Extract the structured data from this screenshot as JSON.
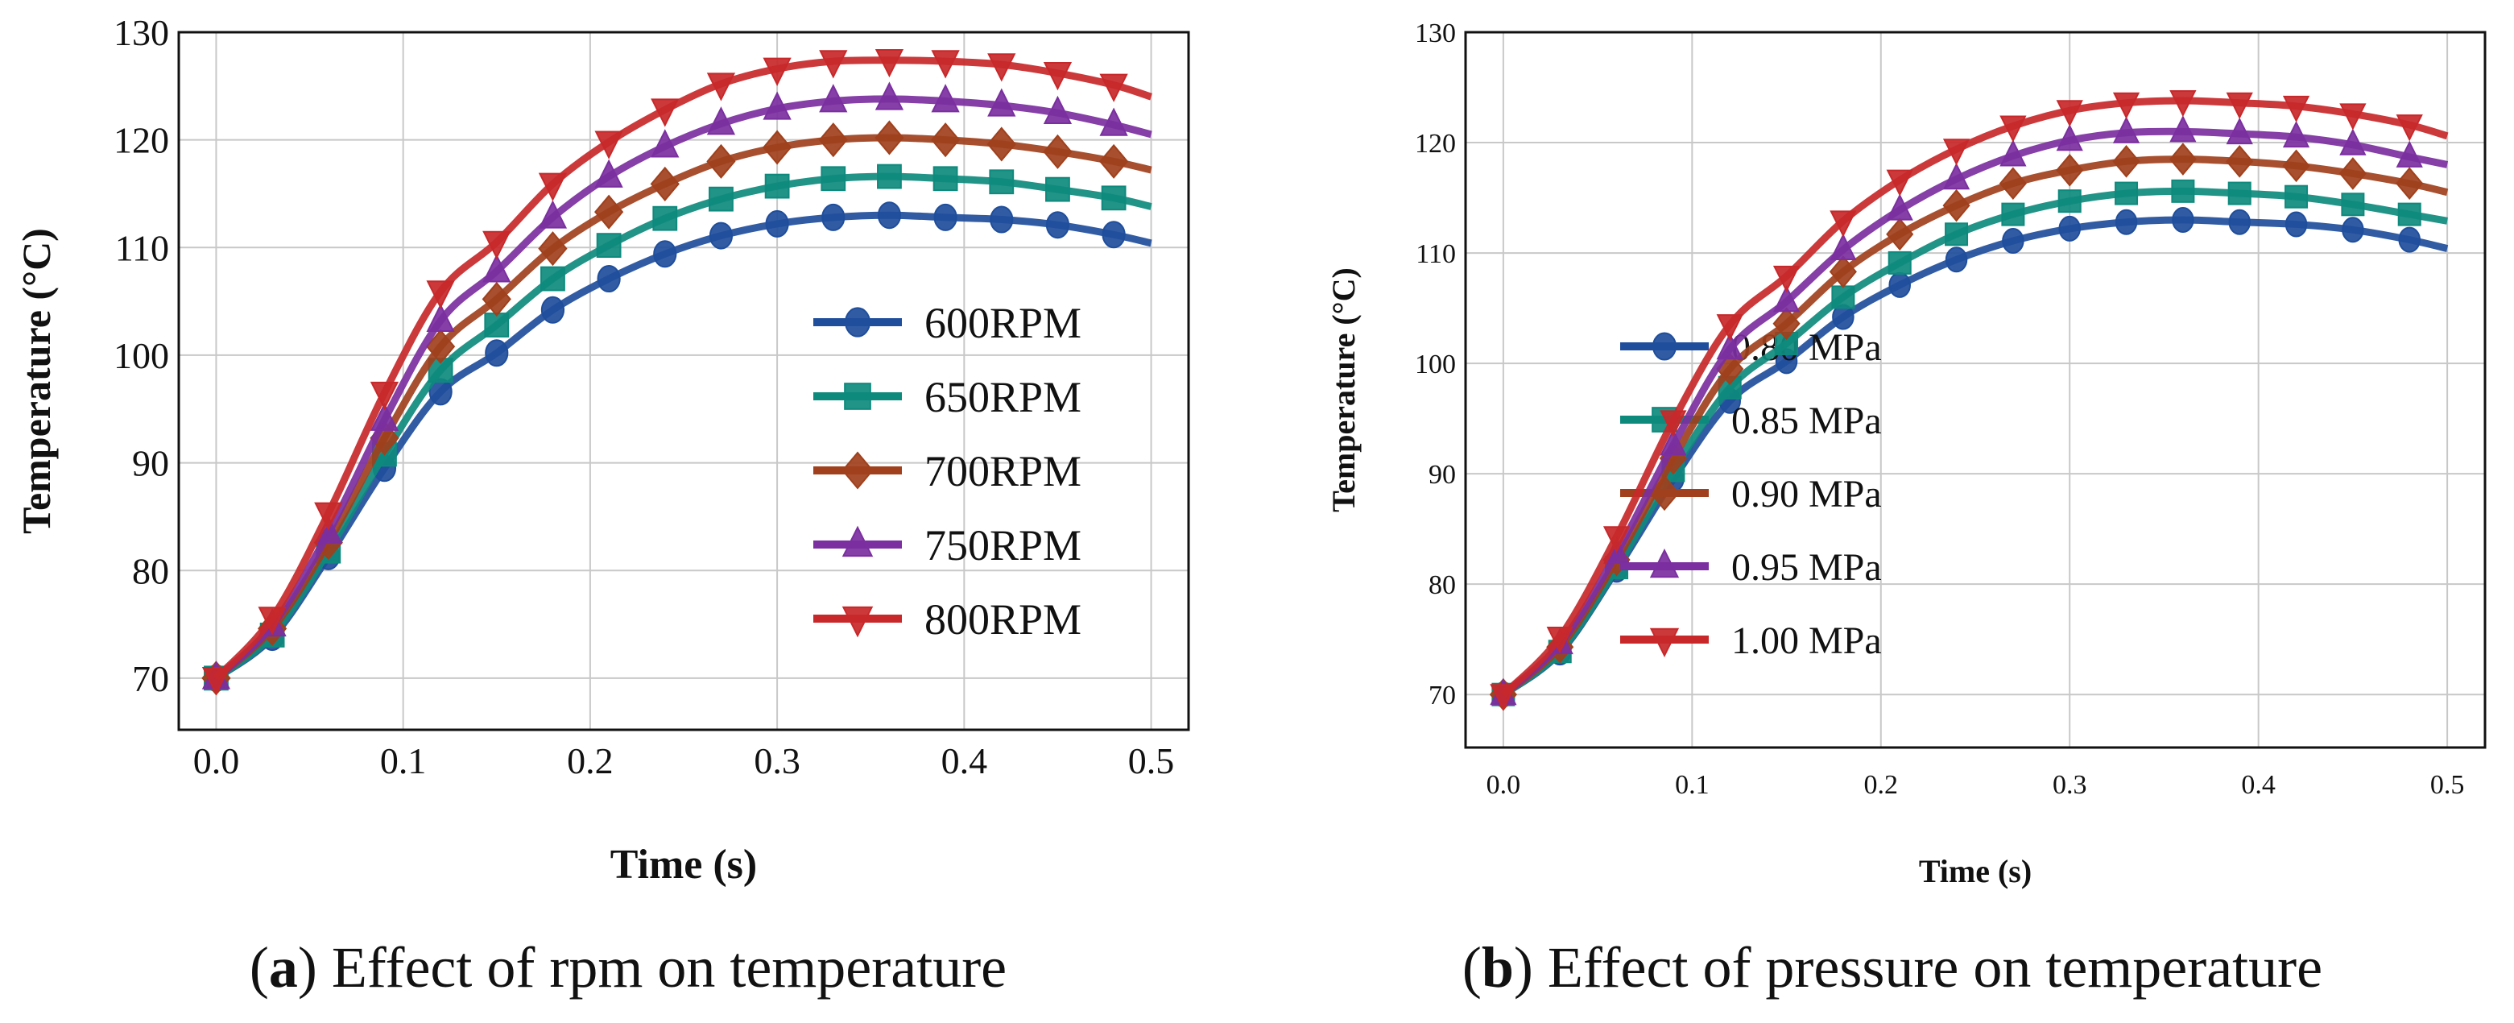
{
  "chart_data": [
    {
      "type": "line",
      "caption_letter": "a",
      "caption_text": "Effect of rpm on temperature",
      "xlabel": "Time (s)",
      "ylabel": "Temperature (°C)",
      "xlim": [
        -0.02,
        0.52
      ],
      "ylim": [
        65.2,
        130
      ],
      "xticks": [
        "0.0",
        "0.1",
        "0.2",
        "0.3",
        "0.4",
        "0.5"
      ],
      "xtick_values": [
        0,
        0.1,
        0.2,
        0.3,
        0.4,
        0.5
      ],
      "yticks": [
        "70",
        "80",
        "90",
        "100",
        "110",
        "120",
        "130"
      ],
      "ytick_values": [
        70,
        80,
        90,
        100,
        110,
        120,
        130
      ],
      "grid": true,
      "legend_position": "center-right",
      "x": [
        0,
        0.03,
        0.06,
        0.09,
        0.12,
        0.15,
        0.18,
        0.21,
        0.24,
        0.27,
        0.3,
        0.33,
        0.36,
        0.39,
        0.42,
        0.45,
        0.48,
        0.5
      ],
      "series": [
        {
          "name": "600RPM",
          "color": "#1f4e9c",
          "marker": "circle",
          "values": [
            70,
            73.8,
            81.3,
            89.5,
            96.6,
            100.2,
            104.2,
            107.1,
            109.4,
            111.1,
            112.2,
            112.8,
            113.0,
            112.8,
            112.6,
            112.1,
            111.2,
            110.4
          ]
        },
        {
          "name": "650RPM",
          "color": "#0e8a7d",
          "marker": "square",
          "values": [
            70,
            74.0,
            81.8,
            90.8,
            98.6,
            102.8,
            107.1,
            110.2,
            112.7,
            114.5,
            115.7,
            116.4,
            116.6,
            116.4,
            116.1,
            115.4,
            114.6,
            113.8
          ]
        },
        {
          "name": "700RPM",
          "color": "#a0401c",
          "marker": "diamond",
          "values": [
            70,
            74.6,
            82.6,
            92.3,
            100.8,
            105.2,
            109.9,
            113.3,
            115.9,
            118.0,
            119.3,
            120.0,
            120.2,
            120.0,
            119.6,
            118.9,
            118.0,
            117.2
          ]
        },
        {
          "name": "750RPM",
          "color": "#7b2fa0",
          "marker": "triangle-up",
          "values": [
            70,
            74.9,
            83.5,
            94.0,
            103.2,
            107.8,
            112.8,
            116.6,
            119.4,
            121.5,
            122.9,
            123.6,
            123.8,
            123.6,
            123.2,
            122.5,
            121.4,
            120.5
          ]
        },
        {
          "name": "800RPM",
          "color": "#c8282a",
          "marker": "triangle-down",
          "values": [
            70,
            75.6,
            85.3,
            96.5,
            105.9,
            110.5,
            115.9,
            119.8,
            122.8,
            125.2,
            126.6,
            127.3,
            127.4,
            127.3,
            127.0,
            126.2,
            125.1,
            124.0
          ]
        }
      ]
    },
    {
      "type": "line",
      "caption_letter": "b",
      "caption_text": "Effect of pressure on temperature",
      "xlabel": "Time (s)",
      "ylabel": "Temperature (°C)",
      "xlim": [
        -0.02,
        0.52
      ],
      "ylim": [
        65.2,
        130
      ],
      "xticks": [
        "0.0",
        "0.1",
        "0.2",
        "0.3",
        "0.4",
        "0.5"
      ],
      "xtick_values": [
        0,
        0.1,
        0.2,
        0.3,
        0.4,
        0.5
      ],
      "yticks": [
        "70",
        "80",
        "90",
        "100",
        "110",
        "120",
        "130"
      ],
      "ytick_values": [
        70,
        80,
        90,
        100,
        110,
        120,
        130
      ],
      "grid": true,
      "legend_position": "center-right",
      "x": [
        0,
        0.03,
        0.06,
        0.09,
        0.12,
        0.15,
        0.18,
        0.21,
        0.24,
        0.27,
        0.3,
        0.33,
        0.36,
        0.39,
        0.42,
        0.45,
        0.48,
        0.5
      ],
      "series": [
        {
          "name": "0.80 MPa",
          "color": "#1f4e9c",
          "marker": "circle",
          "values": [
            70,
            73.8,
            81.3,
            89.5,
            96.6,
            100.2,
            104.2,
            107.1,
            109.4,
            111.1,
            112.2,
            112.8,
            113.0,
            112.8,
            112.6,
            112.1,
            111.2,
            110.4
          ]
        },
        {
          "name": "0.85 MPa",
          "color": "#0e8a7d",
          "marker": "square",
          "values": [
            70,
            73.9,
            81.5,
            90.3,
            97.8,
            101.8,
            106.0,
            109.1,
            111.7,
            113.5,
            114.7,
            115.4,
            115.6,
            115.4,
            115.1,
            114.4,
            113.5,
            112.9
          ]
        },
        {
          "name": "0.90 MPa",
          "color": "#a0401c",
          "marker": "diamond",
          "values": [
            70,
            74.3,
            82.2,
            91.4,
            99.5,
            103.6,
            108.3,
            111.7,
            114.3,
            116.3,
            117.5,
            118.3,
            118.5,
            118.3,
            117.9,
            117.2,
            116.3,
            115.5
          ]
        },
        {
          "name": "0.95 MPa",
          "color": "#7b2fa0",
          "marker": "triangle-up",
          "values": [
            70,
            74.6,
            82.8,
            92.6,
            101.3,
            105.6,
            110.3,
            113.9,
            116.7,
            118.8,
            120.2,
            120.9,
            121.0,
            120.8,
            120.5,
            119.8,
            118.7,
            118.0
          ]
        },
        {
          "name": "1.00 MPa",
          "color": "#c8282a",
          "marker": "triangle-down",
          "values": [
            70,
            75.2,
            84.3,
            94.8,
            103.5,
            107.9,
            112.9,
            116.6,
            119.4,
            121.5,
            122.9,
            123.6,
            123.8,
            123.6,
            123.3,
            122.6,
            121.6,
            120.6
          ]
        }
      ]
    }
  ]
}
